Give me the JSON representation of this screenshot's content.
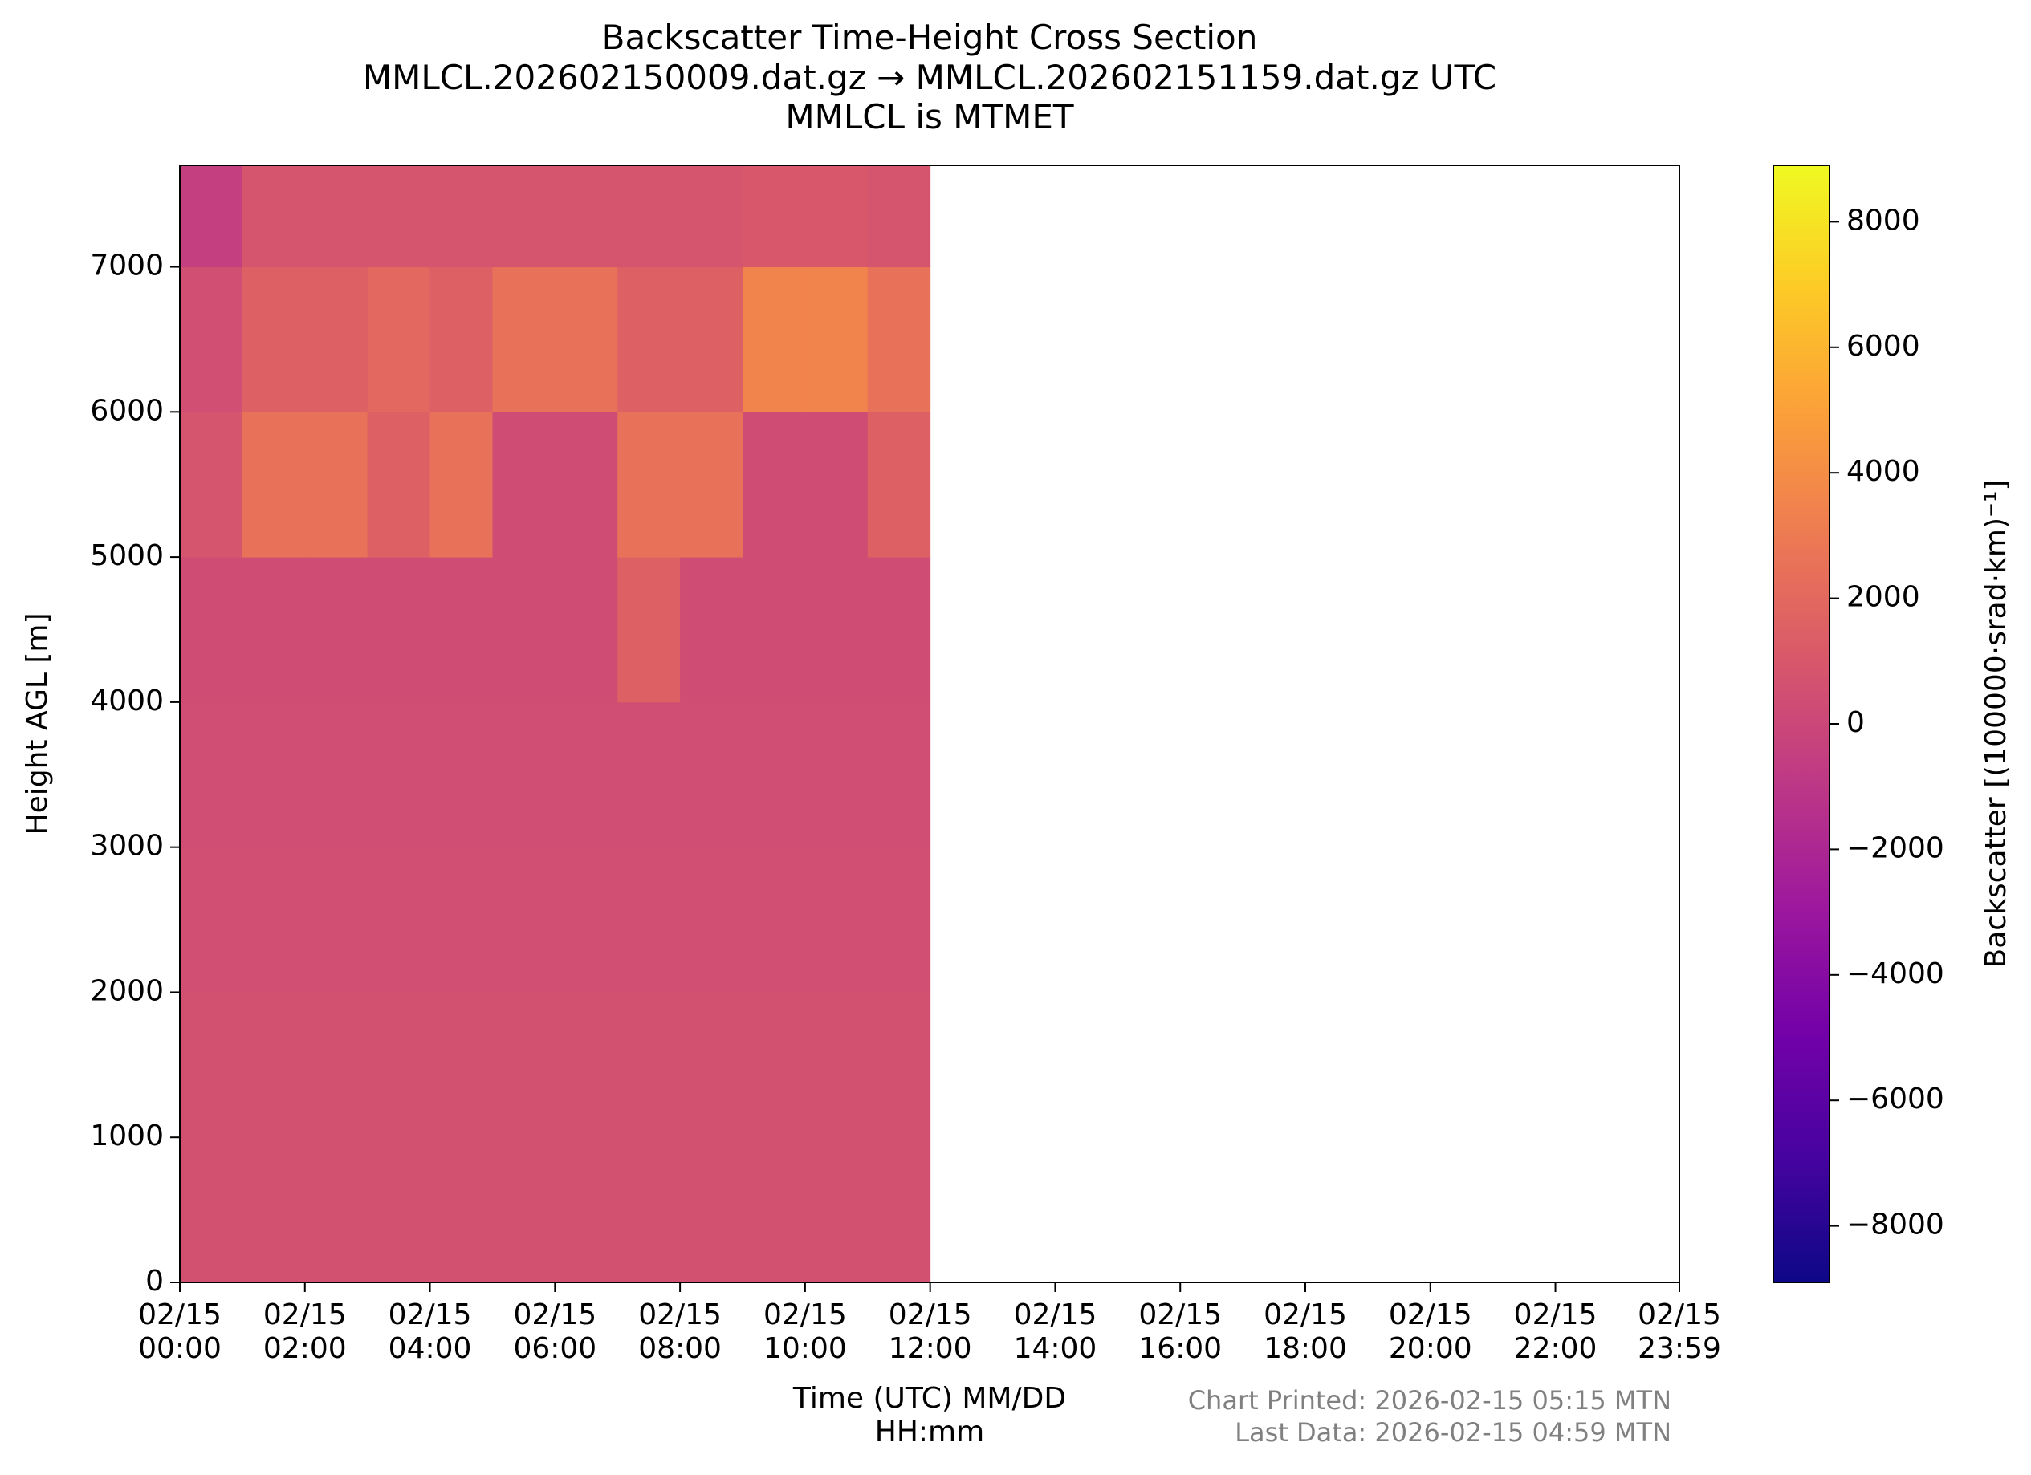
{
  "chart_data": {
    "type": "heatmap",
    "title": "Backscatter Time-Height Cross Section\nMMLCL.202602150009.dat.gz → MMLCL.202602151159.dat.gz UTC\nMMLCL is MTMET",
    "x_label": "Time (UTC) MM/DD\nHH:mm",
    "y_label": "Height AGL [m]",
    "colorbar_label": "Backscatter [(100000·srad·km)⁻¹]",
    "notes": [
      "Chart Printed: 2026-02-15 05:15 MTN",
      "Last Data: 2026-02-15 04:59 MTN"
    ],
    "x": [
      0.5,
      1.5,
      2.5,
      3.5,
      4.5,
      5.5,
      6.5,
      7.5,
      8.5,
      9.5,
      10.5,
      11.5
    ],
    "y": [
      500,
      1500,
      2500,
      3500,
      4500,
      5500,
      6500,
      7500
    ],
    "z": [
      [
        600,
        600,
        600,
        600,
        600,
        600,
        600,
        600,
        600,
        600,
        600,
        600
      ],
      [
        600,
        600,
        600,
        600,
        600,
        600,
        600,
        600,
        600,
        600,
        600,
        600
      ],
      [
        500,
        500,
        500,
        500,
        500,
        500,
        500,
        500,
        500,
        500,
        500,
        500
      ],
      [
        400,
        400,
        400,
        400,
        400,
        400,
        400,
        400,
        400,
        400,
        400,
        400
      ],
      [
        300,
        300,
        300,
        300,
        300,
        300,
        300,
        1500,
        300,
        300,
        300,
        300
      ],
      [
        800,
        2500,
        2500,
        1500,
        2500,
        300,
        300,
        2500,
        2500,
        300,
        300,
        1500
      ],
      [
        500,
        1500,
        1500,
        2000,
        1500,
        2500,
        2500,
        1500,
        1500,
        3500,
        3500,
        2500
      ],
      [
        -500,
        800,
        800,
        800,
        800,
        800,
        800,
        800,
        800,
        1000,
        1000,
        800
      ]
    ],
    "xlim": [
      0,
      23.983
    ],
    "ylim": [
      0,
      7700
    ],
    "clim": [
      -8900,
      8900
    ],
    "colormap": [
      "#0d0887",
      "#46039f",
      "#7201a8",
      "#9c179e",
      "#bd3786",
      "#d8576b",
      "#ed7953",
      "#fb9f3a",
      "#fdca26",
      "#f0f921"
    ],
    "xticks": [
      {
        "value": 0,
        "label": "02/15\n00:00"
      },
      {
        "value": 2,
        "label": "02/15\n02:00"
      },
      {
        "value": 4,
        "label": "02/15\n04:00"
      },
      {
        "value": 6,
        "label": "02/15\n06:00"
      },
      {
        "value": 8,
        "label": "02/15\n08:00"
      },
      {
        "value": 10,
        "label": "02/15\n10:00"
      },
      {
        "value": 12,
        "label": "02/15\n12:00"
      },
      {
        "value": 14,
        "label": "02/15\n14:00"
      },
      {
        "value": 16,
        "label": "02/15\n16:00"
      },
      {
        "value": 18,
        "label": "02/15\n18:00"
      },
      {
        "value": 20,
        "label": "02/15\n20:00"
      },
      {
        "value": 22,
        "label": "02/15\n22:00"
      },
      {
        "value": 23.983,
        "label": "02/15\n23:59"
      }
    ],
    "yticks": [
      0,
      1000,
      2000,
      3000,
      4000,
      5000,
      6000,
      7000
    ],
    "cticks": [
      {
        "value": -8000,
        "label": "−8000"
      },
      {
        "value": -6000,
        "label": "−6000"
      },
      {
        "value": -4000,
        "label": "−4000"
      },
      {
        "value": -2000,
        "label": "−2000"
      },
      0,
      2000,
      4000,
      6000,
      8000
    ]
  }
}
